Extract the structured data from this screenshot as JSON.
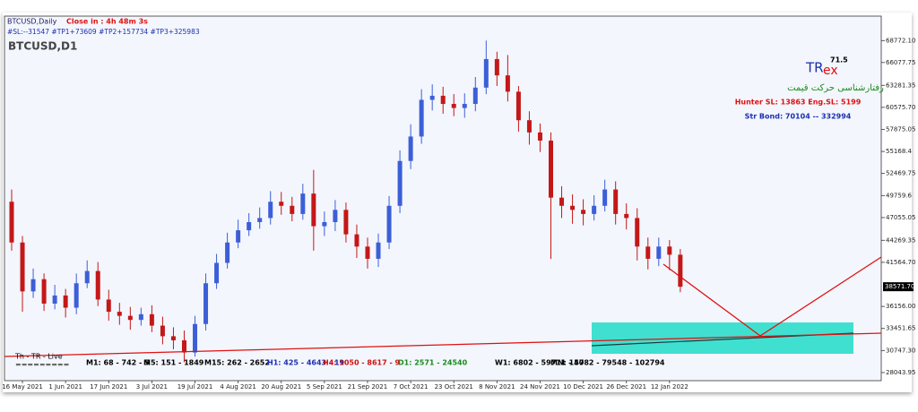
{
  "header": {
    "symbol": "BTCUSD,Daily",
    "countdown": "Close in : 4h 48m 3s",
    "targets": "#SL:--31547   #TP1+73609   #TP2+157734   #TP3+325983",
    "chart_label": "BTCUSD,D1"
  },
  "brand": {
    "logo_main": "TR",
    "logo_accent": "ex",
    "version": "71.5",
    "tagline": "رفتارشناسی حرکت قیمت",
    "hunter": "Hunter SL: 13863   Eng.SL: 5199",
    "bond": "Str Bond: 70104 -- 332994"
  },
  "footer": {
    "mode": "Th - TR - Live",
    "divider": "=========",
    "levels": [
      {
        "text": "M1: 68 - 742 - 5",
        "color": "#000000"
      },
      {
        "text": "M5: 151 - 1849",
        "color": "#000000"
      },
      {
        "text": "M15: 262 - 2652",
        "color": "#000000"
      },
      {
        "text": "H1: 425 - 4643 - 19",
        "color": "#1a2fb0"
      },
      {
        "text": "H4: 1050 - 8617 - 9",
        "color": "#d01010"
      },
      {
        "text": "D1: 2571 - 24540",
        "color": "#1a8a1a"
      },
      {
        "text": "W1: 6802 - 59711 - 57",
        "color": "#000000"
      },
      {
        "text": "MN: 14082 - 79548 - 102794",
        "color": "#000000"
      }
    ]
  },
  "chart_data": {
    "type": "candlestick",
    "categories": [
      null,
      "16 May 2021",
      null,
      null,
      null,
      "1 Jun 2021",
      null,
      null,
      null,
      "17 Jun 2021",
      null,
      null,
      null,
      "3 Jul 2021",
      null,
      null,
      null,
      "19 Jul 2021",
      null,
      null,
      null,
      "4 Aug 2021",
      null,
      null,
      null,
      "20 Aug 2021",
      null,
      null,
      null,
      "5 Sep 2021",
      null,
      null,
      null,
      "21 Sep 2021",
      null,
      null,
      null,
      "7 Oct 2021",
      null,
      null,
      null,
      "23 Oct 2021",
      null,
      null,
      null,
      "8 Nov 2021",
      null,
      null,
      null,
      "24 Nov 2021",
      null,
      null,
      null,
      "10 Dec 2021",
      null,
      null,
      null,
      "26 Dec 2021",
      null,
      null,
      null,
      "12 Jan 2022",
      null
    ],
    "open": [
      49000,
      44000,
      38000,
      39500,
      36500,
      37500,
      36000,
      39000,
      40500,
      37000,
      35500,
      35000,
      34500,
      35200,
      33800,
      32500,
      32000,
      30500,
      34000,
      39000,
      41500,
      44000,
      45500,
      46500,
      47000,
      49000,
      48500,
      47500,
      50000,
      46000,
      46500,
      48000,
      45000,
      43500,
      42000,
      44000,
      48500,
      54000,
      57000,
      61500,
      62000,
      61000,
      60500,
      61000,
      63000,
      66500,
      64500,
      62500,
      59000,
      57500,
      56500,
      49500,
      48500,
      48000,
      47500,
      48500,
      50500,
      47500,
      47000,
      43500,
      42000,
      43500,
      42500
    ],
    "high": [
      50500,
      44800,
      40800,
      40200,
      38800,
      38300,
      40200,
      41800,
      41600,
      38200,
      36600,
      36100,
      36000,
      36300,
      34900,
      33600,
      33200,
      35000,
      40200,
      42600,
      45200,
      46800,
      47600,
      48300,
      50300,
      50200,
      49600,
      51200,
      52900,
      47800,
      49200,
      48900,
      46200,
      44600,
      45100,
      49700,
      55300,
      58500,
      62800,
      63400,
      63100,
      62200,
      62300,
      64300,
      68772,
      67400,
      67000,
      63200,
      60100,
      58600,
      57500,
      50900,
      49900,
      49300,
      49800,
      51700,
      51500,
      48800,
      48200,
      44600,
      44600,
      44300,
      43200
    ],
    "low": [
      43000,
      35500,
      37200,
      35600,
      35800,
      34800,
      35200,
      38400,
      36200,
      34400,
      33900,
      33300,
      33800,
      33000,
      31500,
      30900,
      29300,
      30000,
      33200,
      38300,
      40800,
      43300,
      44800,
      45700,
      46200,
      47400,
      46600,
      46800,
      43000,
      44800,
      45400,
      44000,
      42100,
      40800,
      41000,
      43200,
      47600,
      53000,
      56100,
      60200,
      59800,
      59500,
      59300,
      60100,
      62200,
      63200,
      61300,
      57600,
      56000,
      55100,
      42000,
      47000,
      46300,
      46100,
      46700,
      47800,
      46200,
      45600,
      41800,
      40700,
      41100,
      40600,
      37900
    ],
    "close": [
      44000,
      38000,
      39500,
      36500,
      37500,
      36000,
      39000,
      40500,
      37000,
      35500,
      35000,
      34500,
      35200,
      33800,
      32500,
      32000,
      30500,
      34000,
      39000,
      41500,
      44000,
      45500,
      46500,
      47000,
      49000,
      48500,
      47500,
      50000,
      46000,
      46500,
      48000,
      45000,
      43500,
      42000,
      44000,
      48500,
      54000,
      57000,
      61500,
      62000,
      61000,
      60500,
      61000,
      63000,
      66500,
      64500,
      62500,
      59000,
      57500,
      56500,
      49500,
      48500,
      48000,
      47500,
      48500,
      50500,
      47500,
      47000,
      43500,
      42000,
      43500,
      42500,
      38571.7
    ],
    "up_color": "#3c5fd8",
    "down_color": "#c41818",
    "ylim": [
      27050,
      71770
    ],
    "yticks": [
      {
        "value": 68772.1,
        "label": "68772.10"
      },
      66077.75,
      63281.35,
      {
        "value": 60575.7,
        "label": "60575.70"
      },
      57875.05,
      55168.4,
      52469.75,
      49759.6,
      47055.05,
      44269.35,
      {
        "value": 41564.7,
        "label": "41564.70"
      },
      {
        "value": 36156,
        "label": "36156.00"
      },
      33451.65,
      {
        "value": 30747.3,
        "label": "30747.30"
      },
      28043.95
    ],
    "price_label": {
      "value": 38571.7,
      "label": "38571.70"
    }
  }
}
